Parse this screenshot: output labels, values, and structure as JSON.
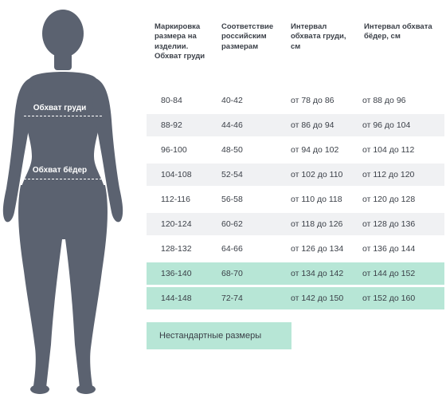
{
  "figure": {
    "chest_label": "Обхват груди",
    "hips_label": "Обхват бёдер",
    "body_color": "#5b6270"
  },
  "table": {
    "headers": [
      "Маркировка размера на изделии. Обхват груди",
      "Соответствие российским размерам",
      "Интервал обхвата груди, см",
      "Интервал обхвата бёдер, см"
    ],
    "rows": [
      {
        "marking": "80-84",
        "russian": "40-42",
        "chest": "от 78 до 86",
        "hips": "от 88 до 96",
        "style": "plain"
      },
      {
        "marking": "88-92",
        "russian": "44-46",
        "chest": "от 86 до 94",
        "hips": "от 96 до 104",
        "style": "alt"
      },
      {
        "marking": "96-100",
        "russian": "48-50",
        "chest": "от 94 до 102",
        "hips": "от 104 до 112",
        "style": "plain"
      },
      {
        "marking": "104-108",
        "russian": "52-54",
        "chest": "от 102 до 110",
        "hips": "от 112 до 120",
        "style": "alt"
      },
      {
        "marking": "112-116",
        "russian": "56-58",
        "chest": "от 110 до 118",
        "hips": "от 120 до 128",
        "style": "plain"
      },
      {
        "marking": "120-124",
        "russian": "60-62",
        "chest": "от 118 до 126",
        "hips": "от 128 до 136",
        "style": "alt"
      },
      {
        "marking": "128-132",
        "russian": "64-66",
        "chest": "от 126 до 134",
        "hips": "от 136 до 144",
        "style": "plain"
      },
      {
        "marking": "136-140",
        "russian": "68-70",
        "chest": "от 134 до 142",
        "hips": "от 144 до 152",
        "style": "hl"
      },
      {
        "marking": "144-148",
        "russian": "72-74",
        "chest": "от 142 до 150",
        "hips": "от 152 до 160",
        "style": "hl"
      }
    ],
    "alt_row_color": "#f0f1f3",
    "highlight_color": "#b7e6d6"
  },
  "legend": {
    "nonstandard_label": "Нестандартные размеры"
  }
}
